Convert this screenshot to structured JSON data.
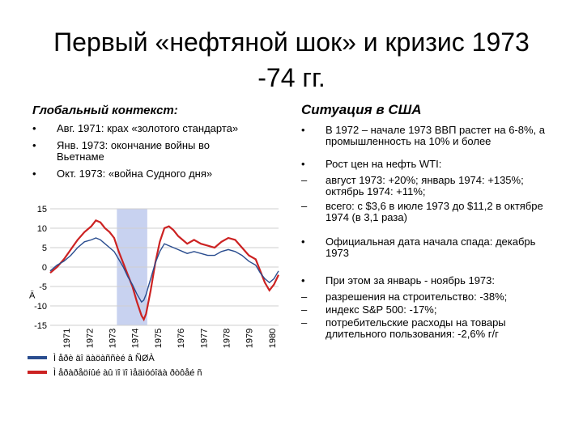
{
  "slide": {
    "title_line1": "Первый «нефтяной шок» и кризис 1973",
    "title_line2": "-74 гг."
  },
  "left": {
    "heading": "Глобальный контекст:",
    "bullets": [
      "Авг. 1971: крах «золотого стандарта»",
      "Янв. 1973: окончание войны во Вьетнаме",
      "Окт. 1973: «война Судного дня»"
    ]
  },
  "right": {
    "heading": "Ситуация в США",
    "items": [
      {
        "marker": "•",
        "text": "В 1972 – начале 1973 ВВП растет на 6-8%, а промышленность на 10% и более"
      },
      {
        "marker": "•",
        "text": "Рост цен на нефть WTI:"
      },
      {
        "marker": "–",
        "text": "август 1973: +20%; январь 1974: +135%; октябрь 1974: +11%;"
      },
      {
        "marker": "–",
        "text": "всего: с $3,6 в июле 1973 до $11,2 в октябре 1974 (в 3,1 раза)"
      },
      {
        "marker": "•",
        "text": "Официальная дата начала спада: декабрь 1973"
      },
      {
        "marker": "•",
        "text": "При этом за январь - ноябрь 1973:"
      },
      {
        "marker": "–",
        "text": "разрешения на строительство: -38%;"
      },
      {
        "marker": "–",
        "text": "индекс S&P 500: -17%;"
      },
      {
        "marker": "–",
        "text": "потребительские расходы на товары длительного пользования: -2,6% г/г"
      }
    ]
  },
  "chart_data": {
    "type": "line",
    "ylim": [
      -15,
      15
    ],
    "yticks": [
      15,
      10,
      5,
      0,
      -5,
      -10,
      -15
    ],
    "ylabel": "Ä",
    "xlim": [
      1971.0,
      1981.0
    ],
    "xticks": [
      "1971",
      "1972",
      "1973",
      "1974",
      "1975",
      "1976",
      "1977",
      "1978",
      "1979",
      "1980"
    ],
    "recession_band": [
      1973.92,
      1975.25
    ],
    "series": [
      {
        "color": "#cc2222",
        "x": [
          1971.0,
          1971.3,
          1971.6,
          1971.9,
          1972.2,
          1972.5,
          1972.8,
          1973.0,
          1973.2,
          1973.4,
          1973.6,
          1973.8,
          1974.0,
          1974.2,
          1974.4,
          1974.6,
          1974.8,
          1975.0,
          1975.1,
          1975.2,
          1975.4,
          1975.6,
          1975.8,
          1976.0,
          1976.2,
          1976.4,
          1976.6,
          1976.8,
          1977.0,
          1977.3,
          1977.6,
          1977.9,
          1978.2,
          1978.5,
          1978.8,
          1979.1,
          1979.4,
          1979.7,
          1980.0,
          1980.2,
          1980.4,
          1980.6,
          1980.8,
          1981.0
        ],
        "y": [
          -1.5,
          0.0,
          2.0,
          4.5,
          7.0,
          9.0,
          10.5,
          12.0,
          11.5,
          10.0,
          9.0,
          7.5,
          4.0,
          1.0,
          -2.0,
          -5.0,
          -9.0,
          -12.5,
          -13.5,
          -12.0,
          -6.0,
          1.0,
          6.5,
          10.0,
          10.5,
          9.5,
          8.0,
          7.0,
          6.0,
          7.0,
          6.0,
          5.5,
          5.0,
          6.5,
          7.5,
          7.0,
          5.0,
          3.0,
          2.0,
          -1.0,
          -4.0,
          -6.0,
          -4.5,
          -2.0
        ]
      },
      {
        "color": "#2a4d8f",
        "x": [
          1971.0,
          1971.3,
          1971.6,
          1971.9,
          1972.2,
          1972.5,
          1972.8,
          1973.0,
          1973.2,
          1973.4,
          1973.6,
          1973.8,
          1974.0,
          1974.2,
          1974.4,
          1974.6,
          1974.8,
          1975.0,
          1975.1,
          1975.2,
          1975.4,
          1975.6,
          1975.8,
          1976.0,
          1976.2,
          1976.4,
          1976.6,
          1976.8,
          1977.0,
          1977.3,
          1977.6,
          1977.9,
          1978.2,
          1978.5,
          1978.8,
          1979.1,
          1979.4,
          1979.7,
          1980.0,
          1980.2,
          1980.4,
          1980.6,
          1980.8,
          1981.0
        ],
        "y": [
          -1.0,
          0.5,
          1.5,
          3.0,
          5.0,
          6.5,
          7.0,
          7.5,
          7.0,
          6.0,
          5.0,
          4.0,
          2.0,
          0.0,
          -2.5,
          -4.5,
          -7.0,
          -9.0,
          -8.5,
          -7.0,
          -3.0,
          1.0,
          4.0,
          6.0,
          5.5,
          5.0,
          4.5,
          4.0,
          3.5,
          4.0,
          3.5,
          3.0,
          3.0,
          4.0,
          4.5,
          4.0,
          3.0,
          1.5,
          0.5,
          -1.5,
          -3.0,
          -4.0,
          -3.0,
          -1.0
        ]
      }
    ],
    "legend": [
      {
        "color": "#2a4d8f",
        "text": "Ì åðè äî äàöàññèé â ÑØÀ"
      },
      {
        "color": "#cc2222",
        "text": "Ì åðàðåöíûé àû ïî ïî ìåäìóóîäà ðòôåé ñ"
      }
    ]
  }
}
